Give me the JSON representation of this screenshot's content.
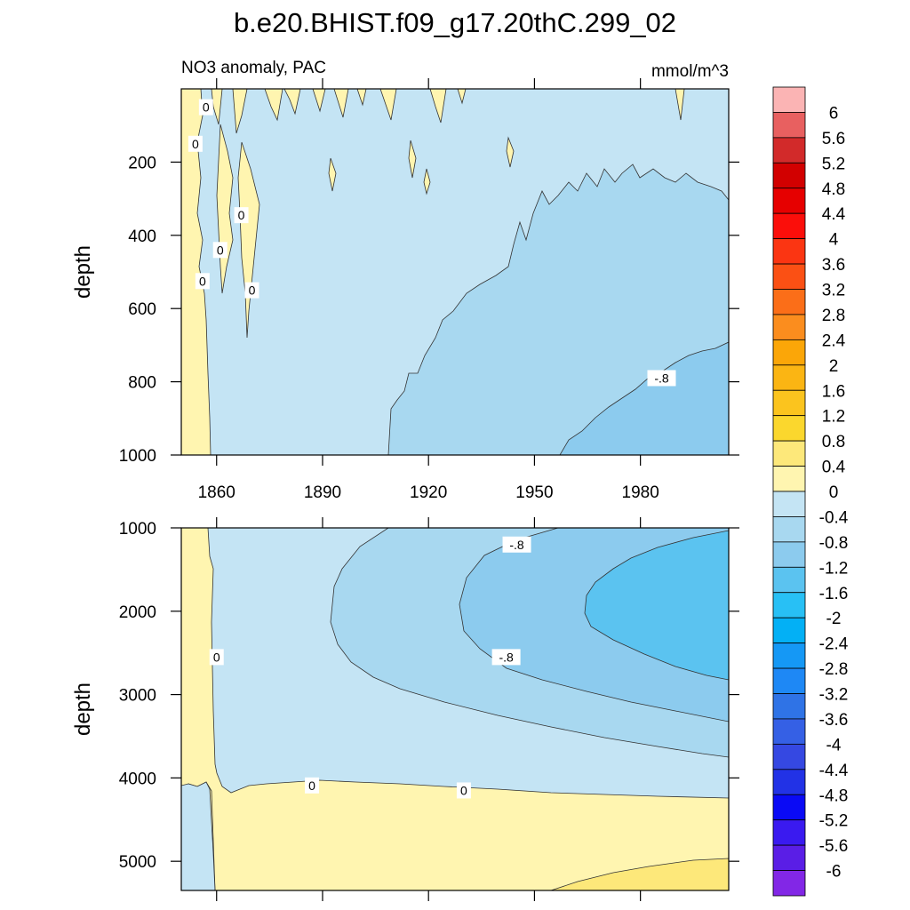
{
  "chart_data": {
    "type": "heatmap",
    "title": "b.e20.BHIST.f09_g17.20thC.299_02",
    "variable": "NO3 anomaly, PAC",
    "units": "mmol/m^3",
    "colorbar": {
      "levels": [
        "-6",
        "-5.6",
        "-5.2",
        "-4.8",
        "-4.4",
        "-4",
        "-3.6",
        "-3.2",
        "-2.8",
        "-2.4",
        "-2",
        "-1.6",
        "-1.2",
        "-0.8",
        "-0.4",
        "0",
        "0.4",
        "0.8",
        "1.2",
        "1.6",
        "2",
        "2.4",
        "2.8",
        "3.2",
        "3.6",
        "4",
        "4.4",
        "4.8",
        "5.2",
        "5.6",
        "6"
      ],
      "colors": [
        "#8227e6",
        "#5a1ee6",
        "#3a1af0",
        "#0a0af5",
        "#2232e6",
        "#3548e2",
        "#3560e5",
        "#2f73e6",
        "#1e88f5",
        "#1598f5",
        "#03b0f5",
        "#28c0f5",
        "#5bc3f0",
        "#8ccbee",
        "#a8d8f0",
        "#c4e4f4",
        "#fff5b0",
        "#fde87a",
        "#fbd72d",
        "#fbc41e",
        "#fbb513",
        "#fba608",
        "#fb8d1e",
        "#fb6e18",
        "#fb5014",
        "#fb3512",
        "#fb0e0a",
        "#e60000",
        "#d20000",
        "#d22a2a",
        "#e86060",
        "#fbb4b4"
      ]
    },
    "upper_panel": {
      "ylabel": "depth",
      "ylim": [
        0,
        1000
      ],
      "yticks": [
        "200",
        "400",
        "600",
        "800",
        "1000"
      ],
      "xlim": [
        1850,
        2005
      ],
      "xticks": [
        "1860",
        "1890",
        "1920",
        "1950",
        "1980"
      ],
      "contour_labels": [
        {
          "text": "0",
          "year": 1857,
          "depth": 50
        },
        {
          "text": "0",
          "year": 1854,
          "depth": 150
        },
        {
          "text": "0",
          "year": 1867,
          "depth": 345
        },
        {
          "text": "0",
          "year": 1861,
          "depth": 440
        },
        {
          "text": "0",
          "year": 1856,
          "depth": 525
        },
        {
          "text": "0",
          "year": 1870,
          "depth": 550
        },
        {
          "text": "-.8",
          "year": 1986,
          "depth": 790
        }
      ],
      "region_boundaries": {
        "zero_west_upper": [
          [
            1850,
            0
          ],
          [
            1855,
            0
          ],
          [
            1855,
            600
          ],
          [
            1857,
            700
          ],
          [
            1858,
            1000
          ]
        ],
        "zero_minus04": [
          [
            1908,
            1000
          ],
          [
            1910,
            900
          ],
          [
            1915,
            860
          ],
          [
            1920,
            810
          ],
          [
            1925,
            760
          ],
          [
            1930,
            720
          ],
          [
            1935,
            680
          ],
          [
            1940,
            640
          ],
          [
            1945,
            610
          ],
          [
            1950,
            580
          ],
          [
            1955,
            560
          ],
          [
            1960,
            480
          ],
          [
            1965,
            420
          ],
          [
            1970,
            340
          ],
          [
            1975,
            300
          ],
          [
            1980,
            280
          ],
          [
            1985,
            270
          ],
          [
            1990,
            260
          ],
          [
            1995,
            250
          ],
          [
            2000,
            255
          ],
          [
            2005,
            250
          ]
        ],
        "minus04_minus08": [
          [
            1957,
            1000
          ],
          [
            1960,
            970
          ],
          [
            1965,
            930
          ],
          [
            1970,
            890
          ],
          [
            1975,
            850
          ],
          [
            1980,
            810
          ],
          [
            1985,
            780
          ],
          [
            1990,
            750
          ],
          [
            1995,
            730
          ],
          [
            2000,
            710
          ],
          [
            2005,
            690
          ]
        ]
      }
    },
    "lower_panel": {
      "ylabel": "depth",
      "ylim": [
        1000,
        5350
      ],
      "yticks": [
        "1000",
        "2000",
        "3000",
        "4000",
        "5000"
      ],
      "xlim": [
        1850,
        2005
      ],
      "contour_labels": [
        {
          "text": "0",
          "year": 1860,
          "depth": 2550
        },
        {
          "text": "-.8",
          "year": 1945,
          "depth": 1200
        },
        {
          "text": "-.8",
          "year": 1942,
          "depth": 2550
        },
        {
          "text": "0",
          "year": 1887,
          "depth": 4090
        },
        {
          "text": "0",
          "year": 1930,
          "depth": 4150
        }
      ],
      "region_boundaries": {
        "zero_west_lower": [
          [
            1850,
            1000
          ],
          [
            1858,
            1000
          ],
          [
            1859,
            3900
          ],
          [
            1860,
            5350
          ]
        ],
        "zero_bottom": [
          [
            1858,
            4100
          ],
          [
            1870,
            4120
          ],
          [
            1890,
            4090
          ],
          [
            1920,
            4150
          ],
          [
            1950,
            4190
          ],
          [
            1980,
            4240
          ],
          [
            2005,
            4290
          ]
        ],
        "zero_minus04": [
          [
            1908,
            1000
          ],
          [
            1895,
            1250
          ],
          [
            1892,
            1600
          ],
          [
            1891,
            2000
          ],
          [
            1900,
            2450
          ],
          [
            1920,
            2800
          ],
          [
            1950,
            3100
          ],
          [
            1980,
            3350
          ],
          [
            2005,
            3500
          ]
        ],
        "minus04_minus08_a": [
          [
            1957,
            1000
          ],
          [
            1940,
            1150
          ],
          [
            1930,
            1450
          ],
          [
            1928,
            1900
          ],
          [
            1935,
            2350
          ],
          [
            1950,
            2700
          ],
          [
            1980,
            3000
          ],
          [
            2005,
            3100
          ]
        ],
        "minus08_minus12": [
          [
            2005,
            1000
          ],
          [
            1985,
            1100
          ],
          [
            1970,
            1350
          ],
          [
            1965,
            1700
          ],
          [
            1967,
            2000
          ],
          [
            1975,
            2300
          ],
          [
            1990,
            2600
          ],
          [
            2005,
            2800
          ]
        ],
        "bottom_04": [
          [
            1955,
            5350
          ],
          [
            1970,
            5180
          ],
          [
            1990,
            5050
          ],
          [
            2005,
            5000
          ]
        ]
      }
    }
  }
}
